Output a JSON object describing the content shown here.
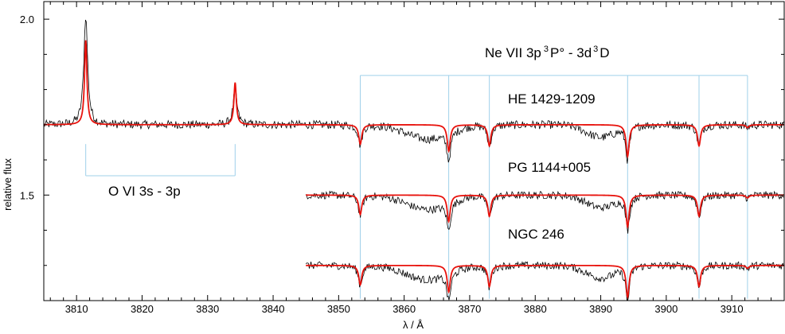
{
  "chart_data": {
    "type": "line",
    "title": "",
    "xlabel": "λ / Å",
    "ylabel": "relative flux",
    "xlim": [
      3805,
      3918
    ],
    "ylim": [
      1.2,
      2.05
    ],
    "x_ticks": [
      3810,
      3820,
      3830,
      3840,
      3850,
      3860,
      3870,
      3880,
      3890,
      3900,
      3910
    ],
    "y_ticks": [
      1.5,
      2.0
    ],
    "y_tick_labels": [
      "1.5",
      "2.0"
    ],
    "grid": false,
    "colors": {
      "observed": "#000000",
      "model": "#e8120c",
      "guide": "#9fd0ea"
    },
    "series": [
      {
        "name": "HE 1429-1209",
        "x_range": [
          3805,
          3918
        ],
        "continuum": 1.7
      },
      {
        "name": "PG 1144+005",
        "x_range": [
          3845,
          3918
        ],
        "continuum": 1.5
      },
      {
        "name": "NGC 246",
        "x_range": [
          3845,
          3918
        ],
        "continuum": 1.3
      }
    ],
    "emission_lines": [
      {
        "x": 3811.4,
        "model_peak": 1.94,
        "observed_peak": 2.01
      },
      {
        "x": 3834.2,
        "model_peak": 1.82,
        "observed_peak": 1.8
      }
    ],
    "absorption_lines": [
      {
        "x": 3853.3,
        "depth": 0.055
      },
      {
        "x": 3866.8,
        "depth": 0.075
      },
      {
        "x": 3873.0,
        "depth": 0.06
      },
      {
        "x": 3894.1,
        "depth": 0.09
      },
      {
        "x": 3905.0,
        "depth": 0.06
      },
      {
        "x": 3912.4,
        "depth": 0.008
      }
    ],
    "annotations": {
      "ne_label_main": "Ne VII   3p",
      "ne_sup1": "3",
      "ne_label_mid": "P°  - 3d",
      "ne_sup2": "3",
      "ne_label_end": "D",
      "o_label": "O VI   3s - 3p",
      "ne_bracket_x": [
        3853.3,
        3866.8,
        3873.0,
        3894.1,
        3905.0,
        3912.4
      ],
      "o_bracket_x": [
        3811.4,
        3834.2
      ]
    }
  }
}
